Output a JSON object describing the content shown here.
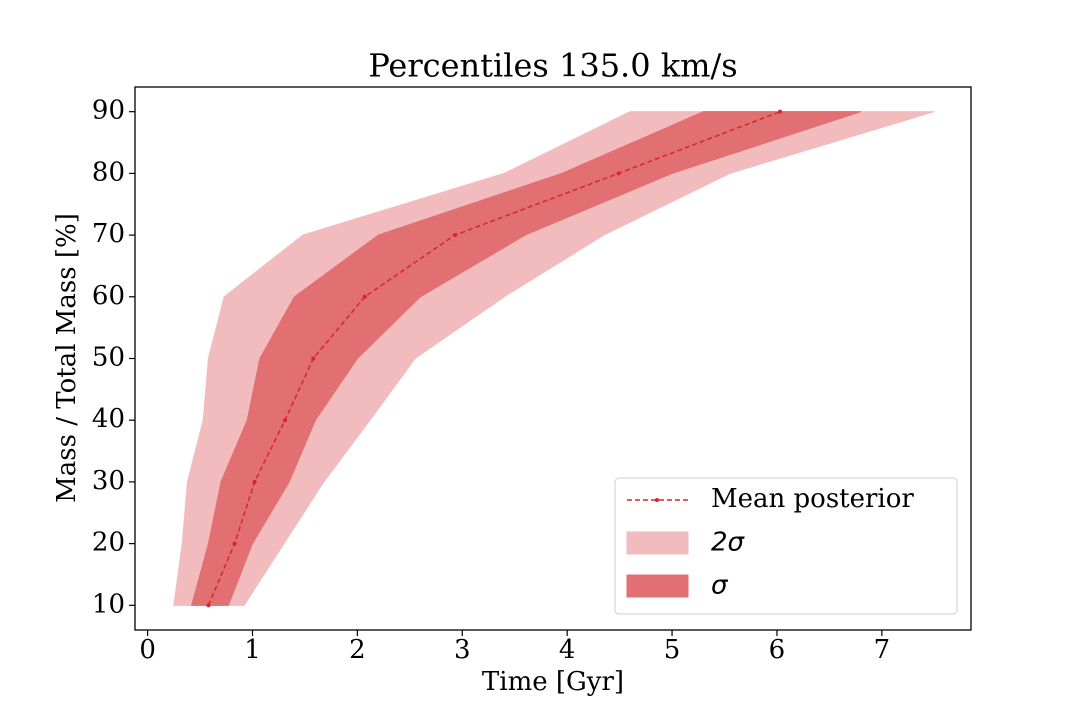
{
  "chart_data": {
    "type": "band",
    "title": "Percentiles 135.0 km/s",
    "x_label": "Time [Gyr]",
    "y_label": "Mass / Total Mass [%]",
    "y": [
      10,
      20,
      30,
      40,
      50,
      60,
      70,
      80,
      90
    ],
    "line": {
      "name": "Mean posterior",
      "color": "#d62728",
      "x": [
        0.58,
        0.83,
        1.02,
        1.31,
        1.58,
        2.07,
        2.93,
        4.49,
        6.03
      ]
    },
    "bands": [
      {
        "name": "2σ",
        "color": "#f2bcbe",
        "x_low": [
          0.25,
          0.33,
          0.38,
          0.53,
          0.58,
          0.73,
          1.48,
          3.4,
          4.6
        ],
        "x_high": [
          0.92,
          1.3,
          1.68,
          2.12,
          2.55,
          3.4,
          4.35,
          5.55,
          7.5
        ]
      },
      {
        "name": "σ",
        "color": "#e27072",
        "x_low": [
          0.42,
          0.58,
          0.7,
          0.95,
          1.07,
          1.4,
          2.2,
          3.95,
          5.3
        ],
        "x_high": [
          0.77,
          1.0,
          1.35,
          1.6,
          2.0,
          2.6,
          3.6,
          5.0,
          6.8
        ]
      }
    ],
    "xlim": [
      -0.12,
      7.85
    ],
    "ylim": [
      6,
      94
    ],
    "xticks": [
      0,
      1,
      2,
      3,
      4,
      5,
      6,
      7
    ],
    "yticks": [
      10,
      20,
      30,
      40,
      50,
      60,
      70,
      80,
      90
    ],
    "legend": "lower right"
  }
}
